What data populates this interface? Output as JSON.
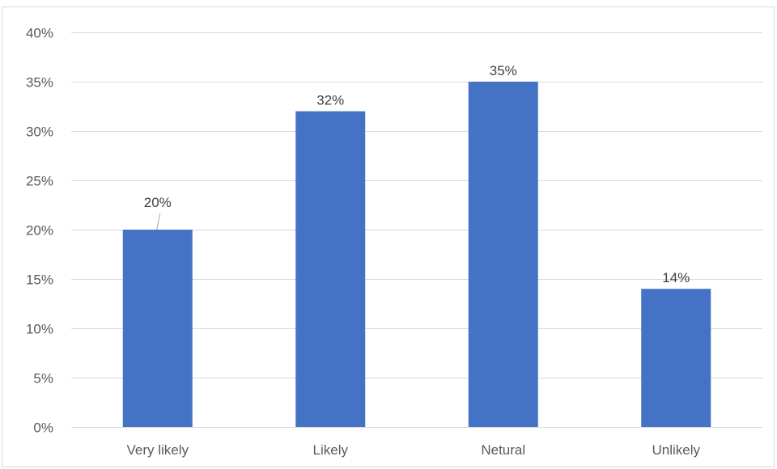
{
  "chart_data": {
    "type": "bar",
    "title": "",
    "xlabel": "",
    "ylabel": "",
    "categories": [
      "Very likely",
      "Likely",
      "Netural",
      "Unlikely"
    ],
    "values": [
      20,
      32,
      35,
      14
    ],
    "data_labels": [
      "20%",
      "32%",
      "35%",
      "14%"
    ],
    "ylim": [
      0,
      40
    ],
    "yticks": [
      0,
      5,
      10,
      15,
      20,
      25,
      30,
      35,
      40
    ],
    "ytick_labels": [
      "0%",
      "5%",
      "10%",
      "15%",
      "20%",
      "25%",
      "30%",
      "35%",
      "40%"
    ],
    "y_unit": "%",
    "grid": true,
    "legend": "none",
    "bar_color": "#4472c4",
    "grid_color": "#d9d9d9",
    "text_color": "#595959"
  }
}
